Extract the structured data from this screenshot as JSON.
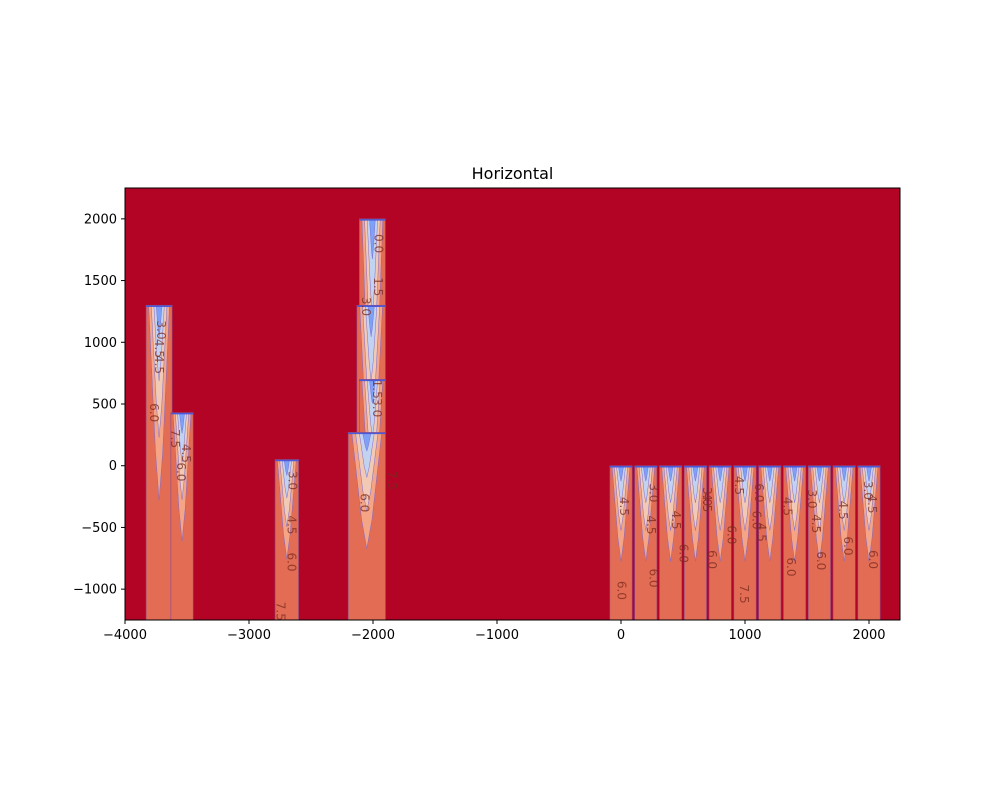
{
  "chart_data": {
    "type": "heatmap",
    "title": "Horizontal",
    "xlabel": "",
    "ylabel": "",
    "xlim": [
      -4000,
      2250
    ],
    "ylim": [
      -1250,
      2250
    ],
    "x_ticks": [
      -4000,
      -3000,
      -2000,
      -1000,
      0,
      1000,
      2000
    ],
    "x_tick_labels": [
      "−4000",
      "−3000",
      "−2000",
      "−1000",
      "0",
      "1000",
      "2000"
    ],
    "y_ticks": [
      -1000,
      -500,
      0,
      500,
      1000,
      1500,
      2000
    ],
    "y_tick_labels": [
      "−1000",
      "−500",
      "0",
      "500",
      "1000",
      "1500",
      "2000"
    ],
    "colormap": "coolwarm",
    "background_color": "#b40426",
    "color_levels": [
      "#3b4cc0",
      "#7b9ff9",
      "#c0d4f5",
      "#f2cbb7",
      "#f7a889",
      "#e36c55",
      "#b40426"
    ],
    "contour_levels": [
      0,
      1.5,
      3.0,
      4.5,
      6.0,
      7.5
    ],
    "columns": [
      {
        "x0": -3830,
        "x1": -3620,
        "top": 1300
      },
      {
        "x0": -3630,
        "x1": -3450,
        "top": 430
      },
      {
        "x0": -2790,
        "x1": -2600,
        "top": 50
      },
      {
        "x0": -2110,
        "x1": -1900,
        "top": 2000
      },
      {
        "x0": -2130,
        "x1": -1900,
        "top": 1300
      },
      {
        "x0": -2110,
        "x1": -1900,
        "top": 700
      },
      {
        "x0": -2200,
        "x1": -1900,
        "top": 270
      },
      {
        "x0": -90,
        "x1": 90,
        "top": 0
      },
      {
        "x0": 110,
        "x1": 290,
        "top": 0
      },
      {
        "x0": 310,
        "x1": 490,
        "top": 0
      },
      {
        "x0": 510,
        "x1": 690,
        "top": 0
      },
      {
        "x0": 710,
        "x1": 890,
        "top": 0
      },
      {
        "x0": 910,
        "x1": 1090,
        "top": 0
      },
      {
        "x0": 1110,
        "x1": 1290,
        "top": 0
      },
      {
        "x0": 1310,
        "x1": 1490,
        "top": 0
      },
      {
        "x0": 1510,
        "x1": 1690,
        "top": 0
      },
      {
        "x0": 1710,
        "x1": 1890,
        "top": 0
      },
      {
        "x0": 1910,
        "x1": 2090,
        "top": 0
      }
    ],
    "contour_labels": [
      {
        "text": "3.0",
        "x": -3740,
        "y": 1100
      },
      {
        "text": "4.5",
        "x": -3760,
        "y": 950
      },
      {
        "text": "4.5",
        "x": -3760,
        "y": 820
      },
      {
        "text": "6.0",
        "x": -3800,
        "y": 430
      },
      {
        "text": "7.5",
        "x": -3630,
        "y": 220
      },
      {
        "text": "4.5",
        "x": -3540,
        "y": 100
      },
      {
        "text": "6.0",
        "x": -3580,
        "y": -50
      },
      {
        "text": "3.0",
        "x": -2680,
        "y": -120
      },
      {
        "text": "4.5",
        "x": -2690,
        "y": -480
      },
      {
        "text": "6.0",
        "x": -2690,
        "y": -780
      },
      {
        "text": "7.5",
        "x": -2780,
        "y": -1180
      },
      {
        "text": "0.0",
        "x": -1990,
        "y": 1800
      },
      {
        "text": "1.5",
        "x": -1990,
        "y": 1450
      },
      {
        "text": "3.0",
        "x": -2090,
        "y": 1290
      },
      {
        "text": "1.5",
        "x": -2000,
        "y": 620
      },
      {
        "text": "3.0",
        "x": -2000,
        "y": 470
      },
      {
        "text": "7.5",
        "x": -1880,
        "y": -120
      },
      {
        "text": "6.0",
        "x": -2100,
        "y": -300
      },
      {
        "text": "4.5",
        "x": -10,
        "y": -330
      },
      {
        "text": "6.0",
        "x": -30,
        "y": -1010
      },
      {
        "text": "3.0",
        "x": 230,
        "y": -220
      },
      {
        "text": "4.5",
        "x": 210,
        "y": -480
      },
      {
        "text": "6.0",
        "x": 230,
        "y": -910
      },
      {
        "text": "4.5",
        "x": 410,
        "y": -440
      },
      {
        "text": "6.0",
        "x": 470,
        "y": -710
      },
      {
        "text": "3.0",
        "x": 660,
        "y": -250
      },
      {
        "text": "4.5",
        "x": 660,
        "y": -300
      },
      {
        "text": "6.0",
        "x": 700,
        "y": -760
      },
      {
        "text": "4.5",
        "x": 920,
        "y": -160
      },
      {
        "text": "6.0",
        "x": 860,
        "y": -560
      },
      {
        "text": "7.5",
        "x": 960,
        "y": -1040
      },
      {
        "text": "6.0",
        "x": 1060,
        "y": -440
      },
      {
        "text": "4.5",
        "x": 1100,
        "y": -540
      },
      {
        "text": "6.0",
        "x": 1080,
        "y": -220
      },
      {
        "text": "4.5",
        "x": 1310,
        "y": -330
      },
      {
        "text": "6.0",
        "x": 1340,
        "y": -820
      },
      {
        "text": "3.0",
        "x": 1510,
        "y": -270
      },
      {
        "text": "4.5",
        "x": 1540,
        "y": -470
      },
      {
        "text": "6.0",
        "x": 1580,
        "y": -770
      },
      {
        "text": "4.5",
        "x": 1760,
        "y": -360
      },
      {
        "text": "6.0",
        "x": 1800,
        "y": -650
      },
      {
        "text": "3.0",
        "x": 1960,
        "y": -200
      },
      {
        "text": "4.5",
        "x": 1990,
        "y": -310
      },
      {
        "text": "6.0",
        "x": 2000,
        "y": -760
      }
    ]
  }
}
